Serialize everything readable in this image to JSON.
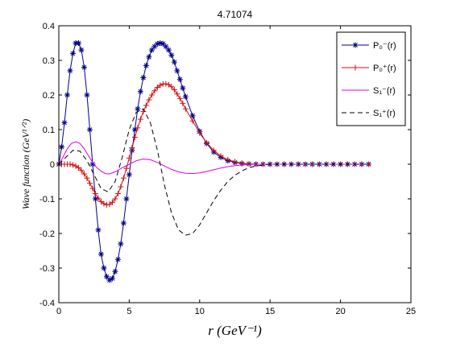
{
  "chart_data": {
    "type": "line",
    "title": "4.71074",
    "xlabel": "r     (GeV⁻¹)",
    "ylabel": "Wave  function     (GeV¹ᐟ²)",
    "xlim": [
      0,
      25
    ],
    "ylim": [
      -0.4,
      0.4
    ],
    "xticks": [
      0,
      5,
      10,
      15,
      20,
      25
    ],
    "yticks": [
      -0.4,
      -0.3,
      -0.2,
      -0.1,
      0,
      0.1,
      0.2,
      0.3,
      0.4
    ],
    "xtick_labels": [
      "0",
      "5",
      "10",
      "15",
      "20",
      "25"
    ],
    "ytick_labels": [
      "-0.4",
      "-0.3",
      "-0.2",
      "-0.1",
      "0",
      "0.1",
      "0.2",
      "0.3",
      "0.4"
    ],
    "grid": false,
    "legend_position": "top-right",
    "series": [
      {
        "name": "P₀⁻(r)",
        "color": "#00008b",
        "line": "solid",
        "marker": "asterisk",
        "x": [
          0,
          0.2,
          0.4,
          0.6,
          0.8,
          1.0,
          1.2,
          1.4,
          1.6,
          1.8,
          2.0,
          2.2,
          2.4,
          2.6,
          2.8,
          3.0,
          3.2,
          3.4,
          3.6,
          3.8,
          4.0,
          4.2,
          4.4,
          4.6,
          4.8,
          5.0,
          5.2,
          5.4,
          5.6,
          5.8,
          6.0,
          6.2,
          6.4,
          6.6,
          6.8,
          7.0,
          7.2,
          7.4,
          7.6,
          7.8,
          8.0,
          8.2,
          8.4,
          8.6,
          8.8,
          9.0,
          9.5,
          10.0,
          10.5,
          11.0,
          11.5,
          12.0,
          12.5,
          13.0,
          13.5,
          14.0,
          14.5,
          15.0,
          15.5,
          16.0,
          16.5,
          17.0,
          17.5,
          18.0,
          18.5,
          19.0,
          19.5,
          20.0,
          20.5,
          21.0,
          21.5,
          22.0
        ],
        "y": [
          0.0,
          0.05,
          0.12,
          0.2,
          0.27,
          0.32,
          0.35,
          0.35,
          0.33,
          0.28,
          0.2,
          0.1,
          0.0,
          -0.1,
          -0.19,
          -0.26,
          -0.3,
          -0.325,
          -0.335,
          -0.33,
          -0.31,
          -0.275,
          -0.23,
          -0.17,
          -0.1,
          -0.03,
          0.04,
          0.1,
          0.16,
          0.21,
          0.25,
          0.285,
          0.31,
          0.33,
          0.34,
          0.348,
          0.35,
          0.348,
          0.34,
          0.33,
          0.315,
          0.295,
          0.27,
          0.245,
          0.22,
          0.195,
          0.14,
          0.095,
          0.06,
          0.035,
          0.02,
          0.01,
          0.005,
          0.002,
          0.001,
          0.0,
          0.0,
          0.0,
          0.0,
          0.0,
          0.0,
          0.0,
          0.0,
          0.0,
          0.0,
          0.0,
          0.0,
          0.0,
          0.0,
          0.0,
          0.0,
          0.0
        ]
      },
      {
        "name": "P₀⁺(r)",
        "color": "#cc1111",
        "line": "solid",
        "marker": "plus",
        "x": [
          0,
          0.2,
          0.4,
          0.6,
          0.8,
          1.0,
          1.2,
          1.4,
          1.6,
          1.8,
          2.0,
          2.2,
          2.4,
          2.6,
          2.8,
          3.0,
          3.2,
          3.4,
          3.6,
          3.8,
          4.0,
          4.2,
          4.4,
          4.6,
          4.8,
          5.0,
          5.2,
          5.4,
          5.6,
          5.8,
          6.0,
          6.2,
          6.4,
          6.6,
          6.8,
          7.0,
          7.2,
          7.4,
          7.6,
          7.8,
          8.0,
          8.2,
          8.4,
          8.6,
          8.8,
          9.0,
          9.5,
          10.0,
          10.5,
          11.0,
          11.5,
          12.0,
          12.5,
          13.0,
          13.5,
          14.0,
          14.5,
          15.0,
          15.5,
          16.0,
          16.5,
          17.0,
          17.5,
          18.0,
          18.5,
          19.0,
          19.5,
          20.0,
          20.5,
          21.0,
          21.5,
          22.0
        ],
        "y": [
          0.0,
          0.0,
          0.0,
          0.0,
          0.0,
          -0.002,
          -0.005,
          -0.01,
          -0.018,
          -0.028,
          -0.04,
          -0.055,
          -0.07,
          -0.085,
          -0.098,
          -0.108,
          -0.114,
          -0.117,
          -0.116,
          -0.11,
          -0.1,
          -0.085,
          -0.065,
          -0.04,
          -0.012,
          0.018,
          0.048,
          0.078,
          0.105,
          0.13,
          0.152,
          0.17,
          0.186,
          0.2,
          0.212,
          0.222,
          0.228,
          0.232,
          0.232,
          0.23,
          0.224,
          0.215,
          0.203,
          0.19,
          0.176,
          0.16,
          0.125,
          0.09,
          0.062,
          0.04,
          0.024,
          0.013,
          0.007,
          0.003,
          0.001,
          0.0,
          0.0,
          0.0,
          0.0,
          0.0,
          0.0,
          0.0,
          0.0,
          0.0,
          0.0,
          0.0,
          0.0,
          0.0,
          0.0,
          0.0,
          0.0,
          0.0
        ]
      },
      {
        "name": "S₁⁻(r)",
        "color": "#e000e0",
        "line": "solid",
        "marker": "none",
        "x": [
          0,
          0.3,
          0.6,
          0.9,
          1.2,
          1.5,
          1.8,
          2.1,
          2.4,
          2.7,
          3.0,
          3.3,
          3.6,
          4.0,
          4.5,
          5.0,
          5.5,
          6.0,
          6.5,
          7.0,
          7.5,
          8.0,
          8.5,
          9.0,
          9.5,
          10.0,
          10.5,
          11.0,
          11.5,
          12.0,
          12.5,
          13.0,
          13.5,
          14.0,
          14.5,
          15.0,
          16.0,
          17.0,
          18.0,
          19.0,
          20.0,
          21.0,
          22.0
        ],
        "y": [
          0.0,
          0.02,
          0.045,
          0.06,
          0.065,
          0.06,
          0.045,
          0.025,
          0.005,
          -0.01,
          -0.02,
          -0.027,
          -0.028,
          -0.022,
          -0.01,
          0.0,
          0.01,
          0.015,
          0.013,
          0.005,
          -0.005,
          -0.015,
          -0.022,
          -0.026,
          -0.027,
          -0.025,
          -0.021,
          -0.016,
          -0.011,
          -0.007,
          -0.004,
          -0.002,
          -0.001,
          0.0,
          0.0,
          0.0,
          0.0,
          0.0,
          0.0,
          0.0,
          0.0,
          0.0,
          0.0
        ]
      },
      {
        "name": "S₁⁺(r)",
        "color": "#000000",
        "line": "dashed",
        "marker": "none",
        "x": [
          0,
          0.5,
          1.0,
          1.5,
          2.0,
          2.5,
          3.0,
          3.5,
          4.0,
          4.5,
          5.0,
          5.5,
          6.0,
          6.5,
          7.0,
          7.5,
          8.0,
          8.5,
          9.0,
          9.5,
          10.0,
          10.5,
          11.0,
          11.5,
          12.0,
          12.5,
          13.0,
          13.5,
          14.0,
          14.5,
          15.0,
          16.0,
          17.0,
          18.0,
          19.0,
          20.0,
          21.0,
          22.0
        ],
        "y": [
          0.0,
          0.02,
          0.04,
          0.038,
          0.01,
          -0.03,
          -0.07,
          -0.08,
          -0.05,
          0.02,
          0.1,
          0.15,
          0.16,
          0.12,
          0.04,
          -0.06,
          -0.14,
          -0.19,
          -0.205,
          -0.2,
          -0.175,
          -0.14,
          -0.105,
          -0.075,
          -0.05,
          -0.032,
          -0.019,
          -0.01,
          -0.005,
          -0.002,
          0.0,
          0.0,
          0.0,
          0.0,
          0.0,
          0.0,
          0.0,
          0.0
        ]
      }
    ]
  }
}
